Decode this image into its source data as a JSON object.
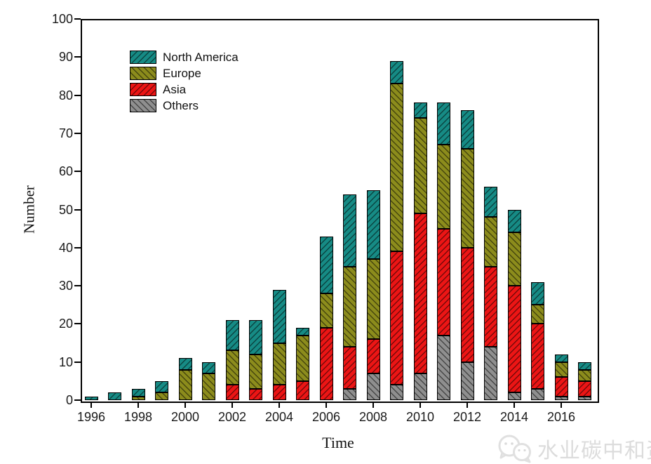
{
  "chart_data": {
    "type": "bar",
    "stacked": true,
    "xlabel": "Time",
    "ylabel": "Number",
    "ylim": [
      0,
      100
    ],
    "yticks": [
      0,
      10,
      20,
      30,
      40,
      50,
      60,
      70,
      80,
      90,
      100
    ],
    "grid": false,
    "legend_position": "top-left-inside",
    "categories": [
      1996,
      1997,
      1998,
      1999,
      2000,
      2001,
      2002,
      2003,
      2004,
      2005,
      2006,
      2007,
      2008,
      2009,
      2010,
      2011,
      2012,
      2013,
      2014,
      2015,
      2016,
      2017
    ],
    "xtick_years": [
      1996,
      1998,
      2000,
      2002,
      2004,
      2006,
      2008,
      2010,
      2012,
      2014,
      2016
    ],
    "series": [
      {
        "name": "Others",
        "color": "#8f8f8f",
        "hatch": "\\",
        "values": [
          0,
          0,
          0,
          0,
          0,
          0,
          0,
          0,
          0,
          0,
          0,
          3,
          7,
          4,
          7,
          17,
          10,
          14,
          2,
          3,
          1,
          1
        ]
      },
      {
        "name": "Asia",
        "color": "#ec1515",
        "hatch": "/",
        "values": [
          0,
          0,
          0,
          0,
          0,
          0,
          4,
          3,
          4,
          5,
          19,
          11,
          9,
          35,
          42,
          28,
          30,
          21,
          28,
          17,
          5,
          4
        ]
      },
      {
        "name": "Europe",
        "color": "#8c8c1c",
        "hatch": "\\",
        "values": [
          0,
          0,
          1,
          2,
          8,
          7,
          9,
          9,
          11,
          12,
          9,
          21,
          21,
          44,
          25,
          22,
          26,
          13,
          14,
          5,
          4,
          3
        ]
      },
      {
        "name": "North America",
        "color": "#168b85",
        "hatch": "/",
        "values": [
          1,
          2,
          2,
          3,
          3,
          3,
          8,
          9,
          14,
          2,
          15,
          19,
          18,
          6,
          4,
          11,
          10,
          8,
          6,
          6,
          2,
          2
        ]
      }
    ],
    "totals": [
      1,
      2,
      3,
      5,
      11,
      10,
      21,
      21,
      29,
      19,
      43,
      54,
      55,
      89,
      78,
      78,
      76,
      56,
      50,
      31,
      12,
      10
    ],
    "legend_order_top_to_bottom": [
      "North America",
      "Europe",
      "Asia",
      "Others"
    ]
  },
  "watermark": {
    "icon": "wechat-icon",
    "text": "水业碳中和资"
  }
}
